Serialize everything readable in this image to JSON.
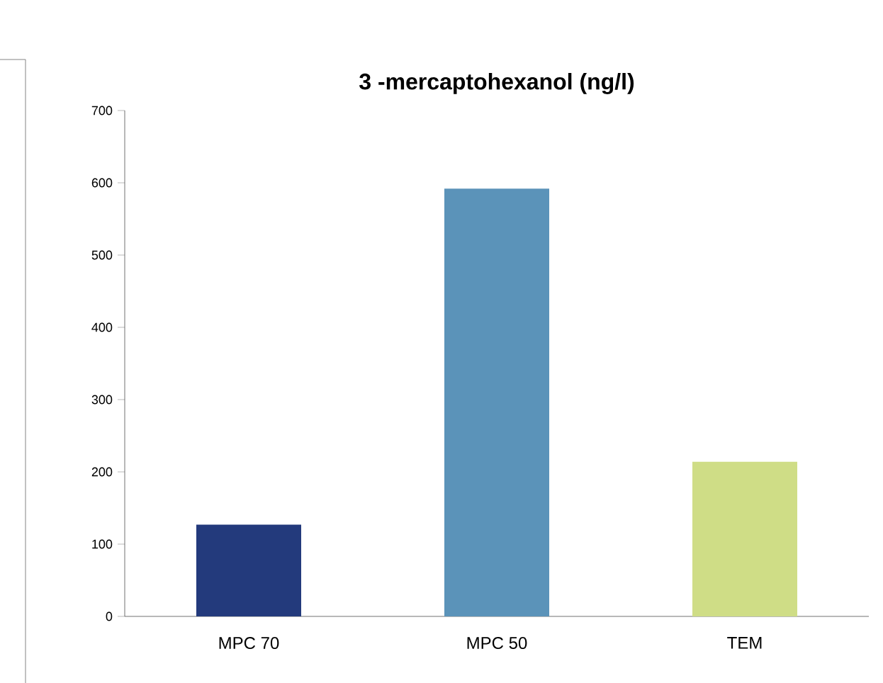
{
  "chart_data": {
    "type": "bar",
    "title": "3 -mercaptohexanol   (ng/l)",
    "categories": [
      "MPC 70",
      "MPC 50",
      "TEM"
    ],
    "values": [
      127,
      592,
      214
    ],
    "colors": [
      "#233a7c",
      "#5b93b9",
      "#cfdd86"
    ],
    "ylim": [
      0,
      700
    ],
    "yticks": [
      0,
      100,
      200,
      300,
      400,
      500,
      600,
      700
    ],
    "grid": false
  }
}
